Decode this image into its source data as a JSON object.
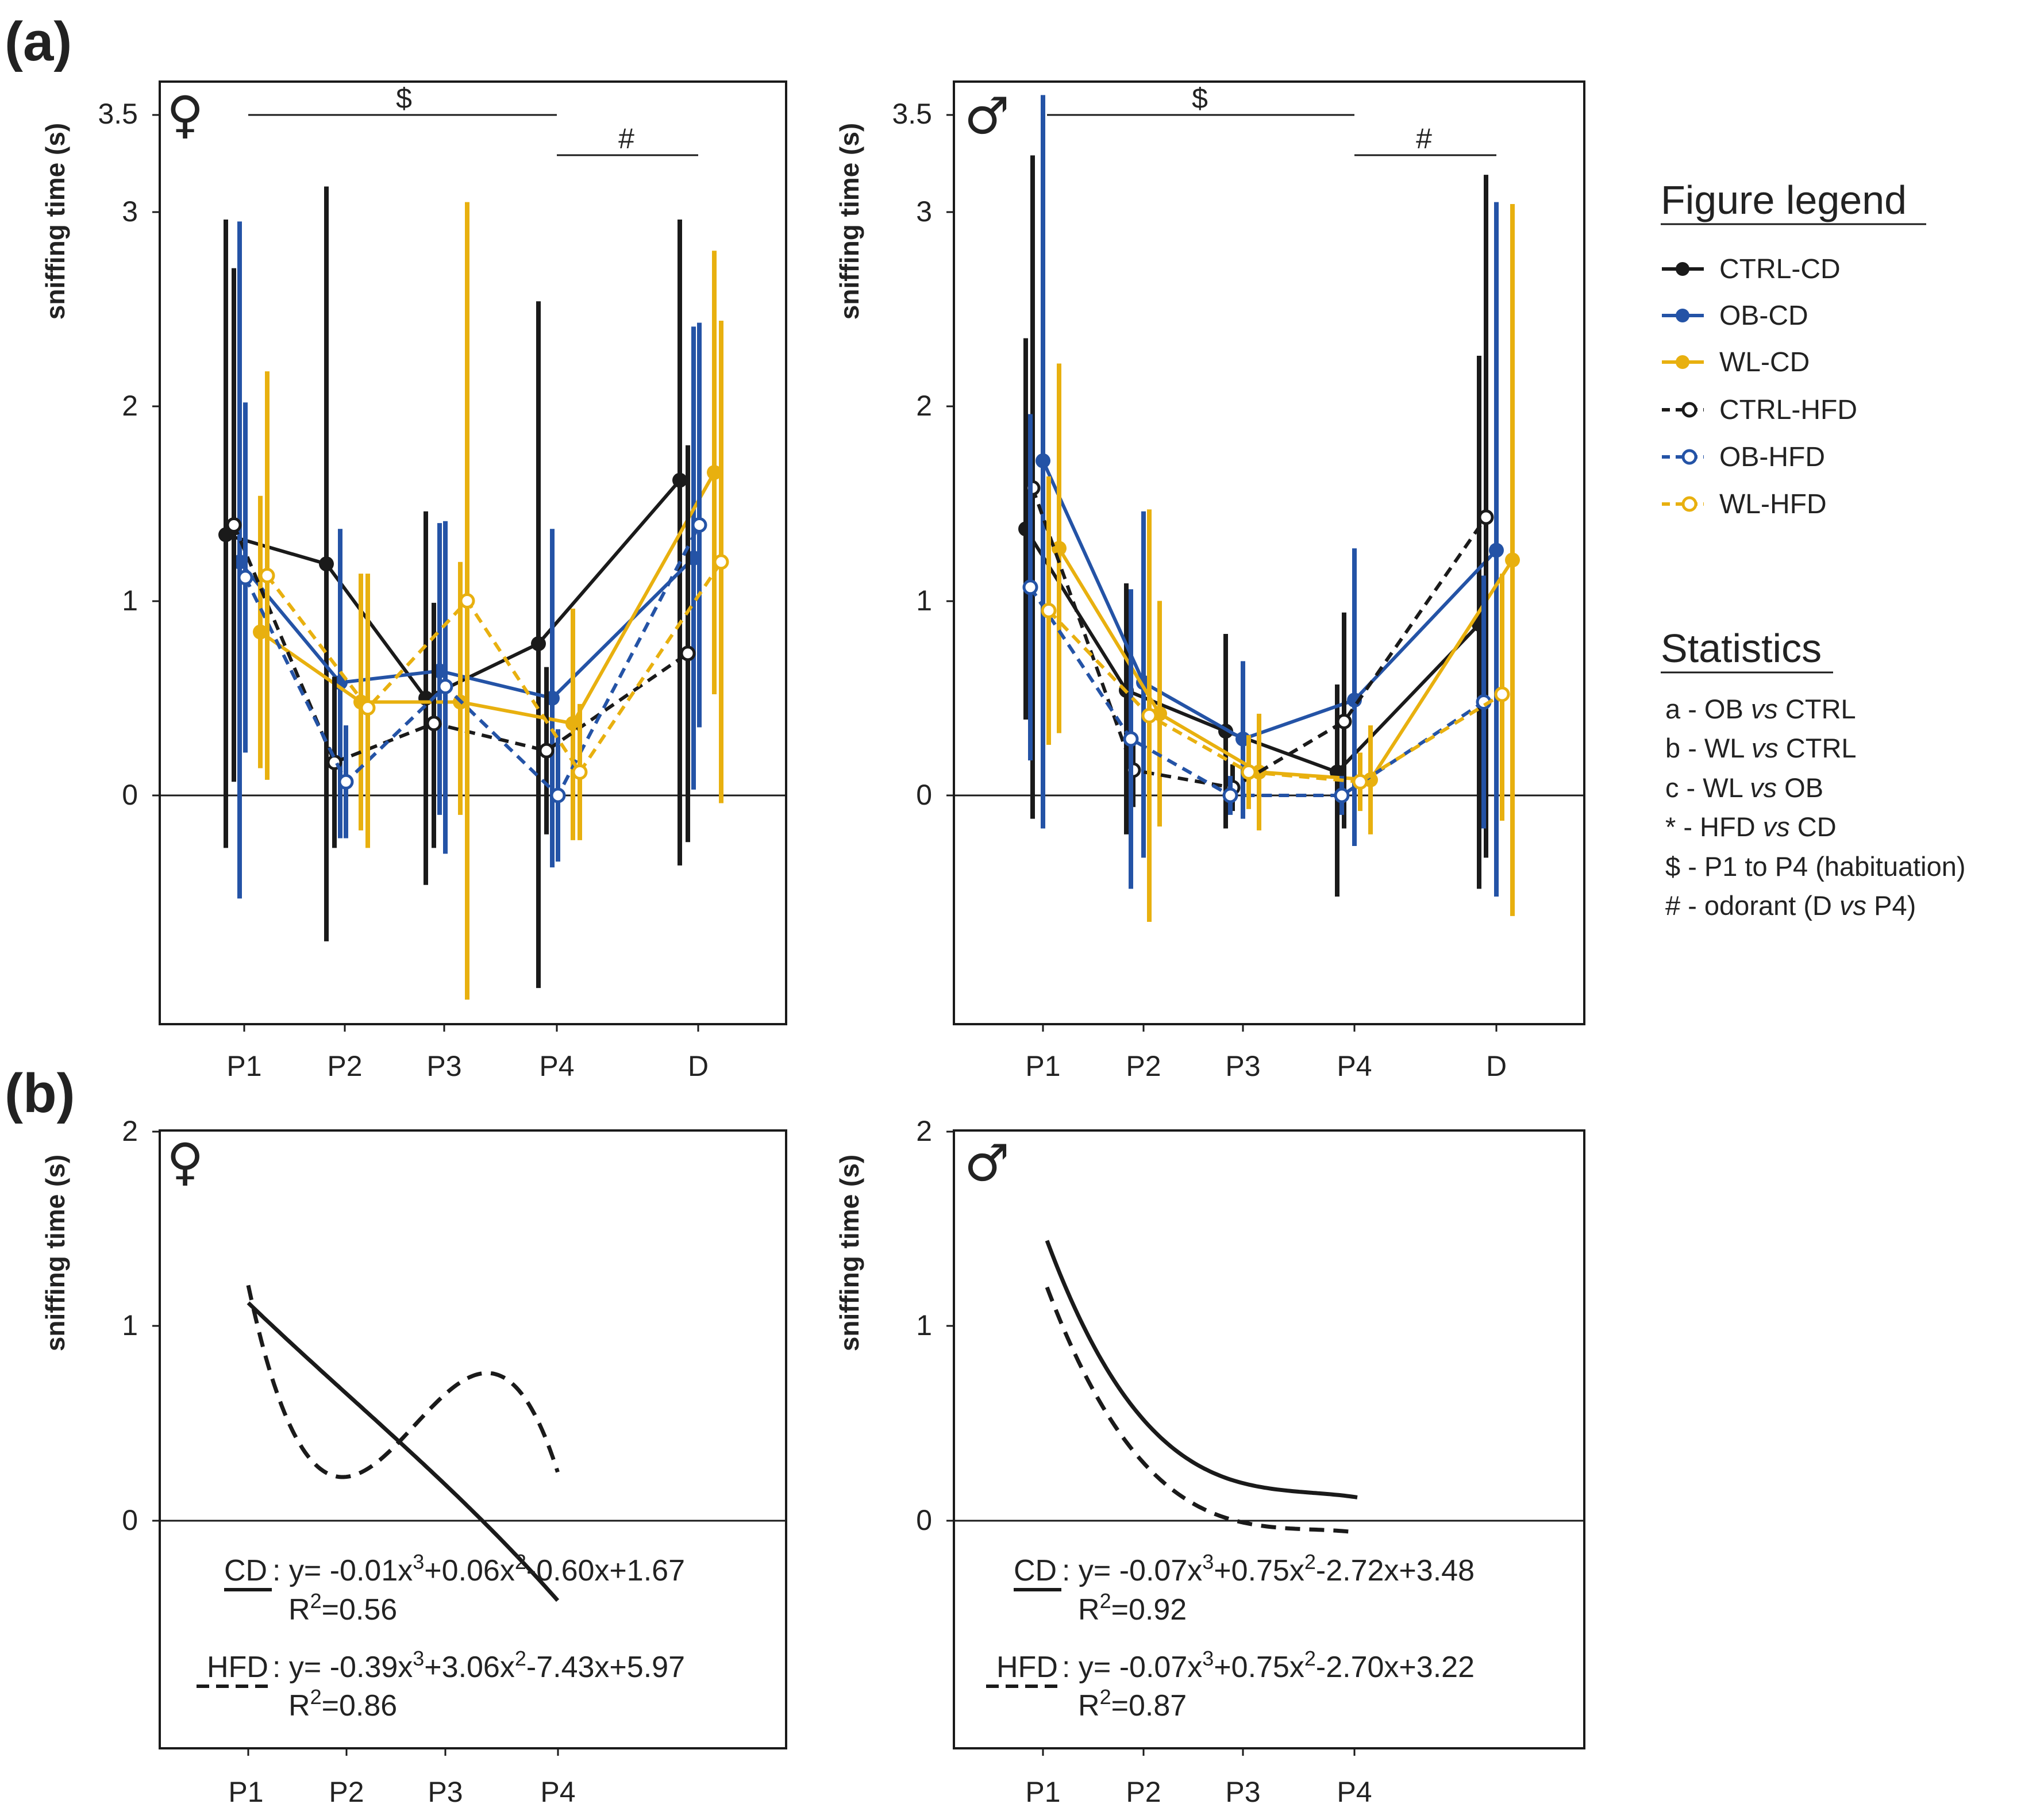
{
  "colors": {
    "black": "#1a1a1a",
    "blue": "#2453a6",
    "yellow": "#e8b00f"
  },
  "panel_labels": {
    "a": "(a)",
    "b": "(b)"
  },
  "axes": {
    "ylabel": "sniffing time (s)",
    "y_ticks_a": [
      "0",
      "1",
      "2",
      "3",
      "3.5"
    ],
    "y_ticks_b": [
      "0",
      "1",
      "2"
    ],
    "x_ticks_a": [
      "P1",
      "P2",
      "P3",
      "P4",
      "D"
    ],
    "x_ticks_b": [
      "P1",
      "P2",
      "P3",
      "P4"
    ]
  },
  "sex_symbols": {
    "female": "♀",
    "male": "♂"
  },
  "significance": {
    "habituation": "$",
    "odorant": "#"
  },
  "legend": {
    "title": "Figure legend",
    "entries": [
      "CTRL-CD",
      "OB-CD",
      "WL-CD",
      "CTRL-HFD",
      "OB-HFD",
      "WL-HFD"
    ]
  },
  "statistics": {
    "title": "Statistics",
    "lines": [
      {
        "prefix": "a - OB ",
        "italic": "vs",
        "suffix": " CTRL"
      },
      {
        "prefix": "b - WL ",
        "italic": "vs",
        "suffix": " CTRL"
      },
      {
        "prefix": "c - WL ",
        "italic": "vs",
        "suffix": " OB"
      },
      {
        "prefix": "* - HFD ",
        "italic": "vs",
        "suffix": " CD"
      },
      {
        "prefix": "$ - P1 to P4 (habituation)",
        "italic": "",
        "suffix": ""
      },
      {
        "prefix": "# - odorant (D ",
        "italic": "vs",
        "suffix": " P4)"
      }
    ]
  },
  "equations": {
    "female": {
      "cd_label": "CD",
      "cd_eq": {
        "a": "y= -0.01x",
        "b": "+0.06x",
        "c": "-0.60x+1.67"
      },
      "cd_r2": "=0.56",
      "hfd_label": "HFD",
      "hfd_eq": {
        "a": "y= -0.39x",
        "b": "+3.06x",
        "c": "-7.43x+5.97"
      },
      "hfd_r2": "=0.86"
    },
    "male": {
      "cd_label": "CD",
      "cd_eq": {
        "a": "y= -0.07x",
        "b": "+0.75x",
        "c": "-2.72x+3.48"
      },
      "cd_r2": "=0.92",
      "hfd_label": "HFD",
      "hfd_eq": {
        "a": "y= -0.07x",
        "b": "+0.75x",
        "c": "-2.70x+3.22"
      },
      "hfd_r2": "=0.87"
    },
    "exp3": "3",
    "exp2": "2",
    "r_letter": "R"
  },
  "chart_data": [
    {
      "type": "line",
      "panel": "(a) female",
      "title": "♀",
      "xlabel": "",
      "ylabel": "sniffing time (s)",
      "categories": [
        "P1",
        "P2",
        "P3",
        "P4",
        "D"
      ],
      "ylim": [
        -1.2,
        3.7
      ],
      "series": [
        {
          "name": "CTRL-CD",
          "color": "black",
          "filled": true,
          "dashed": false,
          "values": [
            1.34,
            1.19,
            0.5,
            0.78,
            1.62
          ],
          "lower": [
            -0.27,
            -0.75,
            -0.46,
            -0.99,
            -0.36
          ],
          "upper": [
            2.96,
            3.13,
            1.46,
            2.54,
            2.96
          ]
        },
        {
          "name": "OB-CD",
          "color": "blue",
          "filled": true,
          "dashed": false,
          "values": [
            1.2,
            0.58,
            0.64,
            0.5,
            1.22
          ],
          "lower": [
            -0.53,
            -0.22,
            -0.1,
            -0.37,
            0.03
          ],
          "upper": [
            2.95,
            1.37,
            1.4,
            1.37,
            2.41
          ]
        },
        {
          "name": "WL-CD",
          "color": "yellow",
          "filled": true,
          "dashed": false,
          "values": [
            0.84,
            0.48,
            0.48,
            0.37,
            1.66
          ],
          "lower": [
            0.14,
            -0.18,
            -0.1,
            -0.23,
            0.52
          ],
          "upper": [
            1.54,
            1.14,
            1.2,
            0.96,
            2.8
          ]
        },
        {
          "name": "CTRL-HFD",
          "color": "black",
          "filled": false,
          "dashed": true,
          "values": [
            1.39,
            0.17,
            0.37,
            0.23,
            0.73
          ],
          "lower": [
            0.07,
            -0.27,
            -0.27,
            -0.2,
            -0.24
          ],
          "upper": [
            2.71,
            0.61,
            0.99,
            0.66,
            1.8
          ]
        },
        {
          "name": "OB-HFD",
          "color": "blue",
          "filled": false,
          "dashed": true,
          "values": [
            1.12,
            0.07,
            0.56,
            0.0,
            1.39
          ],
          "lower": [
            0.22,
            -0.22,
            -0.3,
            -0.34,
            0.35
          ],
          "upper": [
            2.02,
            0.36,
            1.41,
            0.34,
            2.43
          ]
        },
        {
          "name": "WL-HFD",
          "color": "yellow",
          "filled": false,
          "dashed": true,
          "values": [
            1.13,
            0.45,
            1.0,
            0.12,
            1.2
          ],
          "lower": [
            0.08,
            -0.27,
            -1.05,
            -0.23,
            -0.04
          ],
          "upper": [
            2.18,
            1.14,
            3.05,
            0.47,
            2.44
          ]
        }
      ]
    },
    {
      "type": "line",
      "panel": "(a) male",
      "title": "♂",
      "xlabel": "",
      "ylabel": "sniffing time (s)",
      "categories": [
        "P1",
        "P2",
        "P3",
        "P4",
        "D"
      ],
      "ylim": [
        -1.2,
        3.7
      ],
      "series": [
        {
          "name": "CTRL-CD",
          "color": "black",
          "filled": true,
          "dashed": false,
          "values": [
            1.37,
            0.54,
            0.33,
            0.12,
            0.88
          ],
          "lower": [
            0.39,
            -0.2,
            -0.17,
            -0.52,
            -0.48
          ],
          "upper": [
            2.35,
            1.09,
            0.83,
            0.57,
            2.26
          ]
        },
        {
          "name": "OB-CD",
          "color": "blue",
          "filled": true,
          "dashed": false,
          "values": [
            1.72,
            0.58,
            0.29,
            0.49,
            1.26
          ],
          "lower": [
            -0.17,
            -0.32,
            -0.12,
            -0.26,
            -0.52
          ],
          "upper": [
            3.6,
            1.46,
            0.69,
            1.27,
            3.05
          ]
        },
        {
          "name": "WL-CD",
          "color": "yellow",
          "filled": true,
          "dashed": false,
          "values": [
            1.27,
            0.42,
            0.12,
            0.08,
            1.21
          ],
          "lower": [
            0.32,
            -0.16,
            -0.18,
            -0.2,
            -0.62
          ],
          "upper": [
            2.22,
            1.0,
            0.42,
            0.36,
            3.04
          ]
        },
        {
          "name": "CTRL-HFD",
          "color": "black",
          "filled": false,
          "dashed": true,
          "values": [
            1.58,
            0.13,
            0.04,
            0.38,
            1.43
          ],
          "lower": [
            -0.12,
            -0.06,
            -0.08,
            -0.17,
            -0.32
          ],
          "upper": [
            3.29,
            0.32,
            0.16,
            0.94,
            3.19
          ]
        },
        {
          "name": "OB-HFD",
          "color": "blue",
          "filled": false,
          "dashed": true,
          "values": [
            1.07,
            0.29,
            0.0,
            0.0,
            0.48
          ],
          "lower": [
            0.18,
            -0.48,
            -0.1,
            -0.1,
            -0.17
          ],
          "upper": [
            1.96,
            1.06,
            0.1,
            0.1,
            1.13
          ]
        },
        {
          "name": "WL-HFD",
          "color": "yellow",
          "filled": false,
          "dashed": true,
          "values": [
            0.95,
            0.41,
            0.12,
            0.07,
            0.52
          ],
          "lower": [
            0.26,
            -0.65,
            -0.07,
            -0.08,
            -0.13
          ],
          "upper": [
            1.64,
            1.47,
            0.31,
            0.22,
            1.14
          ]
        }
      ]
    },
    {
      "type": "line",
      "panel": "(b) female",
      "title": "♀",
      "ylabel": "sniffing time (s)",
      "categories": [
        "P1",
        "P2",
        "P3",
        "P4"
      ],
      "ylim": [
        -1.2,
        2.0
      ],
      "series": [
        {
          "name": "CD",
          "dashed": false,
          "coefficients": [
            -0.01,
            0.06,
            -0.6,
            1.67
          ]
        },
        {
          "name": "HFD",
          "dashed": true,
          "coefficients": [
            -0.39,
            3.06,
            -7.43,
            5.97
          ]
        }
      ]
    },
    {
      "type": "line",
      "panel": "(b) male",
      "title": "♂",
      "ylabel": "sniffing time (s)",
      "categories": [
        "P1",
        "P2",
        "P3",
        "P4"
      ],
      "ylim": [
        -1.2,
        2.0
      ],
      "series": [
        {
          "name": "CD",
          "dashed": false,
          "coefficients": [
            -0.07,
            0.75,
            -2.72,
            3.48
          ]
        },
        {
          "name": "HFD",
          "dashed": true,
          "coefficients": [
            -0.07,
            0.75,
            -2.7,
            3.22
          ]
        }
      ]
    }
  ]
}
